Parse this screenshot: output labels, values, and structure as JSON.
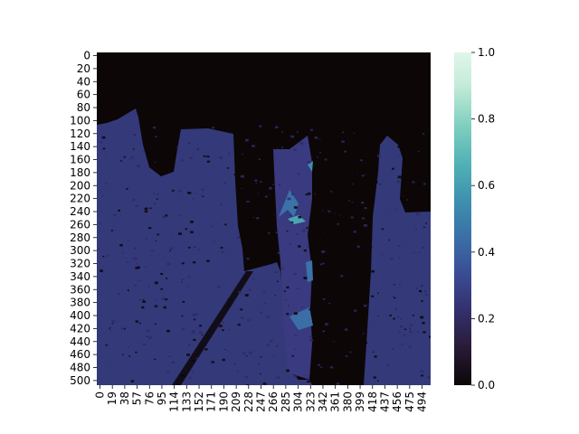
{
  "chart_data": {
    "type": "heatmap",
    "title": "",
    "xlabel": "",
    "ylabel": "",
    "x_ticks": [
      "0",
      "19",
      "38",
      "57",
      "76",
      "95",
      "114",
      "133",
      "152",
      "171",
      "190",
      "209",
      "228",
      "247",
      "266",
      "285",
      "304",
      "323",
      "342",
      "361",
      "380",
      "399",
      "418",
      "437",
      "456",
      "475",
      "494"
    ],
    "y_ticks": [
      "0",
      "20",
      "40",
      "60",
      "80",
      "100",
      "120",
      "140",
      "160",
      "180",
      "200",
      "220",
      "240",
      "260",
      "280",
      "300",
      "320",
      "340",
      "360",
      "380",
      "400",
      "420",
      "440",
      "460",
      "480",
      "500"
    ],
    "x_range": [
      0,
      512
    ],
    "y_range": [
      0,
      512
    ],
    "colorbar": {
      "min": 0.0,
      "max": 1.0,
      "ticks": [
        "0.0",
        "0.2",
        "0.4",
        "0.6",
        "0.8",
        "1.0"
      ],
      "colormap": [
        "#0c0607",
        "#2a1c3a",
        "#332f6b",
        "#3a4b93",
        "#3b6ea6",
        "#3e8fae",
        "#4eb0b4",
        "#7fcfbf",
        "#c4ebd8",
        "#e0f6ea"
      ]
    },
    "regions_description_values": {
      "background_level": 0.0,
      "floor_level": 0.27,
      "highlight_level": 0.55
    }
  }
}
